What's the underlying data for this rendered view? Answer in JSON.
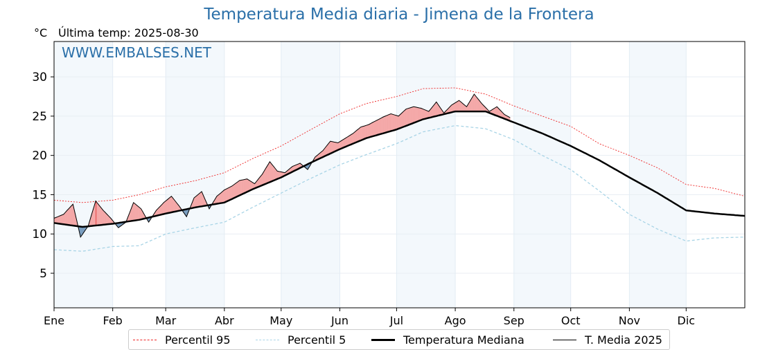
{
  "title": "Temperatura Media diaria - Jimena de la Frontera",
  "unit": "°C",
  "last_temp": "Última temp: 2025-08-30",
  "watermark": "WWW.EMBALSES.NET",
  "colors": {
    "title": "#2a6fa8",
    "p95": "#ee2222",
    "p5": "#a8d4e6",
    "median": "#000000",
    "media2025": "#000000",
    "above_fill": "#f4a8a8",
    "above_fill_dark": "#e85858",
    "below_fill": "#7a9ec0",
    "month_band": "#f3f8fc"
  },
  "legend": [
    {
      "label": "Percentil 95",
      "style": "p95"
    },
    {
      "label": "Percentil 5",
      "style": "p5"
    },
    {
      "label": "Temperatura Mediana",
      "style": "median"
    },
    {
      "label": "T. Media 2025",
      "style": "media2025"
    }
  ],
  "chart_data": {
    "type": "line",
    "title": "Temperatura Media diaria - Jimena de la Frontera",
    "ylabel": "°C",
    "ylim": [
      0.6,
      34.5
    ],
    "yticks": [
      5,
      10,
      15,
      20,
      25,
      30
    ],
    "xlim": [
      0,
      365
    ],
    "month_ticks": [
      {
        "label": "Ene",
        "day": 0
      },
      {
        "label": "Feb",
        "day": 31
      },
      {
        "label": "Mar",
        "day": 59
      },
      {
        "label": "Abr",
        "day": 90
      },
      {
        "label": "May",
        "day": 120
      },
      {
        "label": "Jun",
        "day": 151
      },
      {
        "label": "Jul",
        "day": 181
      },
      {
        "label": "Ago",
        "day": 212
      },
      {
        "label": "Sep",
        "day": 243
      },
      {
        "label": "Oct",
        "day": 273
      },
      {
        "label": "Nov",
        "day": 304
      },
      {
        "label": "Dic",
        "day": 334
      }
    ],
    "shaded_months": [
      [
        0,
        31
      ],
      [
        59,
        90
      ],
      [
        120,
        151
      ],
      [
        181,
        212
      ],
      [
        243,
        273
      ],
      [
        304,
        334
      ]
    ],
    "grid": true,
    "legend_position": "bottom",
    "series": [
      {
        "name": "Percentil 95",
        "x": [
          0,
          15,
          31,
          45,
          59,
          75,
          90,
          105,
          120,
          135,
          151,
          165,
          181,
          195,
          212,
          228,
          243,
          258,
          273,
          288,
          304,
          319,
          334,
          349,
          365
        ],
        "values": [
          14.3,
          14.0,
          14.3,
          15.0,
          16.0,
          16.8,
          17.8,
          19.6,
          21.2,
          23.2,
          25.3,
          26.6,
          27.5,
          28.5,
          28.6,
          27.8,
          26.3,
          25.0,
          23.7,
          21.5,
          20.0,
          18.4,
          16.3,
          15.8,
          14.8
        ]
      },
      {
        "name": "Percentil 5",
        "x": [
          0,
          15,
          31,
          45,
          59,
          75,
          90,
          105,
          120,
          135,
          151,
          165,
          181,
          195,
          212,
          228,
          243,
          258,
          273,
          288,
          304,
          319,
          334,
          349,
          365
        ],
        "values": [
          8.0,
          7.8,
          8.4,
          8.5,
          10.0,
          10.8,
          11.5,
          13.4,
          15.2,
          17.0,
          18.8,
          20.1,
          21.5,
          23.0,
          23.8,
          23.4,
          22.0,
          20.0,
          18.2,
          15.5,
          12.5,
          10.6,
          9.1,
          9.5,
          9.6
        ]
      },
      {
        "name": "Temperatura Mediana",
        "x": [
          0,
          15,
          31,
          45,
          59,
          75,
          90,
          105,
          120,
          135,
          151,
          165,
          181,
          195,
          212,
          228,
          243,
          258,
          273,
          288,
          304,
          319,
          334,
          349,
          365
        ],
        "values": [
          11.4,
          10.9,
          11.3,
          11.8,
          12.6,
          13.4,
          14.0,
          15.7,
          17.2,
          19.0,
          20.8,
          22.2,
          23.3,
          24.6,
          25.6,
          25.6,
          24.2,
          22.8,
          21.2,
          19.4,
          17.2,
          15.2,
          13.0,
          12.6,
          12.3
        ]
      },
      {
        "name": "T. Media 2025",
        "x": [
          0,
          5,
          10,
          14,
          18,
          22,
          26,
          30,
          34,
          38,
          42,
          46,
          50,
          54,
          58,
          62,
          66,
          70,
          74,
          78,
          82,
          86,
          90,
          94,
          98,
          102,
          106,
          110,
          114,
          118,
          122,
          126,
          130,
          134,
          138,
          142,
          146,
          150,
          154,
          158,
          162,
          166,
          170,
          174,
          178,
          182,
          186,
          190,
          194,
          198,
          202,
          206,
          210,
          214,
          218,
          222,
          226,
          230,
          234,
          238,
          241
        ],
        "values": [
          12.0,
          12.5,
          13.8,
          9.6,
          11.0,
          14.2,
          13.0,
          12.0,
          10.8,
          11.5,
          14.0,
          13.2,
          11.5,
          13.0,
          14.0,
          14.8,
          13.6,
          12.2,
          14.6,
          15.4,
          13.2,
          14.8,
          15.6,
          16.1,
          16.8,
          17.0,
          16.4,
          17.6,
          19.2,
          18.0,
          17.8,
          18.6,
          19.0,
          18.2,
          19.8,
          20.6,
          21.8,
          21.6,
          22.2,
          22.8,
          23.6,
          23.9,
          24.4,
          24.9,
          25.3,
          25.0,
          25.9,
          26.2,
          26.0,
          25.6,
          26.8,
          25.4,
          26.4,
          27.0,
          26.2,
          27.8,
          26.6,
          25.6,
          26.2,
          25.2,
          24.8
        ]
      }
    ]
  }
}
